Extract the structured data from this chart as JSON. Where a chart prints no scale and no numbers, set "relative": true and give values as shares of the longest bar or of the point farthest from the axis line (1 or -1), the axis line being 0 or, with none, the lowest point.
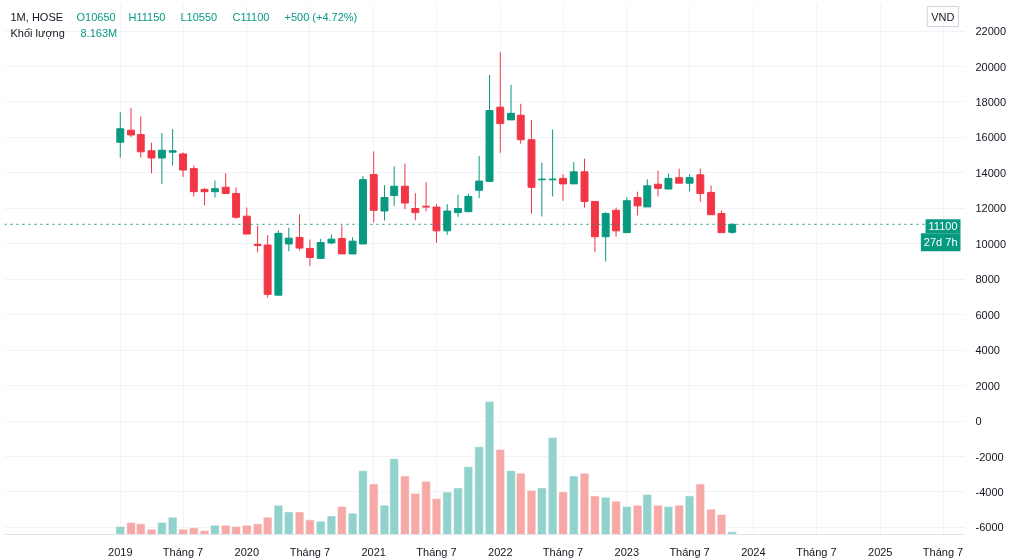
{
  "chart_data": [
    {
      "type": "candlestick",
      "title": "1M, HOSE",
      "annotations": [
        "O10650",
        "H11150",
        "L10550",
        "C11100",
        "+500 (+4.72%)",
        "Khối lượng",
        "8.163M",
        "VND",
        "27d 7h"
      ],
      "x": [
        "2019-01",
        "2019-02",
        "2019-03",
        "2019-04",
        "2019-05",
        "2019-06",
        "2019-07",
        "2019-08",
        "2019-09",
        "2019-10",
        "2019-11",
        "2019-12",
        "2020-01",
        "2020-02",
        "2020-03",
        "2020-04",
        "2020-05",
        "2020-06",
        "2020-07",
        "2020-08",
        "2020-09",
        "2020-10",
        "2020-11",
        "2020-12",
        "2021-01",
        "2021-02",
        "2021-03",
        "2021-04",
        "2021-05",
        "2021-06",
        "2021-07",
        "2021-08",
        "2021-09",
        "2021-10",
        "2021-11",
        "2021-12",
        "2022-01",
        "2022-02",
        "2022-03",
        "2022-04",
        "2022-05",
        "2022-06",
        "2022-07",
        "2022-08",
        "2022-09",
        "2022-10",
        "2022-11",
        "2022-12",
        "2023-01",
        "2023-02",
        "2023-03",
        "2023-04",
        "2023-05",
        "2023-06",
        "2023-07",
        "2023-08",
        "2023-09",
        "2023-10",
        "2023-11"
      ],
      "ohlc": [
        [
          15730,
          17420,
          14860,
          16490
        ],
        [
          16410,
          17670,
          16020,
          16140
        ],
        [
          16160,
          17190,
          14860,
          15190
        ],
        [
          15250,
          15710,
          13980,
          14840
        ],
        [
          14840,
          16250,
          13380,
          15280
        ],
        [
          15170,
          16470,
          14410,
          15250
        ],
        [
          15070,
          15150,
          13770,
          14160
        ],
        [
          14240,
          14410,
          12670,
          12940
        ],
        [
          13070,
          13150,
          12180,
          12940
        ],
        [
          12940,
          13580,
          12610,
          13110
        ],
        [
          13190,
          13980,
          12840,
          12840
        ],
        [
          12840,
          13190,
          11400,
          11500
        ],
        [
          11560,
          12040,
          10550,
          10550
        ],
        [
          9970,
          11010,
          9520,
          9910
        ],
        [
          9930,
          10490,
          6960,
          7150
        ],
        [
          7100,
          10760,
          7100,
          10590
        ],
        [
          9990,
          10900,
          9580,
          10320
        ],
        [
          10360,
          11660,
          9620,
          9760
        ],
        [
          9740,
          10240,
          8750,
          9230
        ],
        [
          9180,
          10280,
          9180,
          10070
        ],
        [
          10050,
          10530,
          9970,
          10260
        ],
        [
          10300,
          11040,
          9430,
          9430
        ],
        [
          9430,
          10360,
          9430,
          10150
        ],
        [
          9990,
          13830,
          9990,
          13620
        ],
        [
          13910,
          15210,
          11210,
          11890
        ],
        [
          11850,
          13310,
          11310,
          12610
        ],
        [
          12720,
          14370,
          12140,
          13250
        ],
        [
          13250,
          14530,
          11950,
          12300
        ],
        [
          11990,
          12860,
          11330,
          11760
        ],
        [
          12120,
          13480,
          11830,
          12070
        ],
        [
          12070,
          12240,
          10050,
          10730
        ],
        [
          10730,
          12240,
          10500,
          11850
        ],
        [
          11760,
          12780,
          11520,
          11990
        ],
        [
          11810,
          12820,
          11810,
          12670
        ],
        [
          13020,
          14960,
          12570,
          13540
        ],
        [
          13520,
          19520,
          13520,
          17520
        ],
        [
          17710,
          20810,
          15130,
          16780
        ],
        [
          16990,
          18970,
          16990,
          17360
        ],
        [
          17250,
          17900,
          15640,
          15870
        ],
        [
          15870,
          16990,
          11700,
          13190
        ],
        [
          13610,
          14570,
          11540,
          13650
        ],
        [
          13610,
          16450,
          12670,
          13650
        ],
        [
          13690,
          13930,
          12430,
          13380
        ],
        [
          13380,
          14610,
          13380,
          14060
        ],
        [
          14060,
          14800,
          12040,
          12390
        ],
        [
          12390,
          12390,
          9520,
          10400
        ],
        [
          10400,
          11790,
          9000,
          11710
        ],
        [
          11890,
          12040,
          10400,
          10730
        ],
        [
          10630,
          12630,
          10630,
          12430
        ],
        [
          12610,
          12940,
          11600,
          12140
        ],
        [
          12080,
          13640,
          12080,
          13270
        ],
        [
          13360,
          14120,
          12670,
          13130
        ],
        [
          13090,
          13960,
          13090,
          13690
        ],
        [
          13730,
          14240,
          13420,
          13420
        ],
        [
          13420,
          13930,
          12960,
          13730
        ],
        [
          13890,
          14240,
          12370,
          12840
        ],
        [
          12900,
          13290,
          11640,
          11640
        ],
        [
          11710,
          11890,
          10630,
          10630
        ],
        [
          10650,
          11150,
          10550,
          11100
        ]
      ],
      "colors": [
        "#089981",
        "#f23645",
        "#f23645",
        "#f23645",
        "#089981",
        "#089981",
        "#f23645",
        "#f23645",
        "#f23645",
        "#089981",
        "#f23645",
        "#f23645",
        "#f23645",
        "#f23645",
        "#f23645",
        "#089981",
        "#089981",
        "#f23645",
        "#f23645",
        "#089981",
        "#089981",
        "#f23645",
        "#089981",
        "#089981",
        "#f23645",
        "#089981",
        "#089981",
        "#f23645",
        "#f23645",
        "#f23645",
        "#f23645",
        "#089981",
        "#089981",
        "#089981",
        "#089981",
        "#089981",
        "#f23645",
        "#089981",
        "#f23645",
        "#f23645",
        "#089981",
        "#089981",
        "#f23645",
        "#089981",
        "#f23645",
        "#f23645",
        "#089981",
        "#f23645",
        "#089981",
        "#f23645",
        "#089981",
        "#f23645",
        "#089981",
        "#f23645",
        "#089981",
        "#f23645",
        "#f23645",
        "#f23645",
        "#089981"
      ],
      "xlim": [
        "2018-02",
        "2025-09"
      ],
      "xticks": [
        {
          "value": "2019-01",
          "label": null
        },
        {
          "value": "2019-07",
          "label": null
        },
        {
          "value": "2020-01",
          "label": null
        },
        {
          "value": "2020-07",
          "label": null
        },
        {
          "value": "2021-01",
          "label": null
        },
        {
          "value": "2021-07",
          "label": null
        },
        {
          "value": "2022-01",
          "label": null
        },
        {
          "value": "2022-07",
          "label": null
        },
        {
          "value": "2023-01",
          "label": null
        },
        {
          "value": "2023-07",
          "label": null
        },
        {
          "value": "2024-01",
          "label": null
        },
        {
          "value": "2024-07",
          "label": null
        },
        {
          "value": "2025-01",
          "label": null
        },
        {
          "value": "2025-07",
          "label": null
        }
      ],
      "ylim": [
        -6400,
        23500
      ],
      "yticks": [
        -6000,
        -4000,
        -2000,
        0,
        2000,
        4000,
        6000,
        8000,
        10000,
        12000,
        14000,
        16000,
        18000,
        20000,
        22000
      ],
      "ref_lines": [
        {
          "axis": "y",
          "value": 11100,
          "label": "11100",
          "color": "#089981",
          "line_style": "dotted"
        }
      ],
      "grid": true,
      "tick_labels": "y"
    },
    {
      "type": "bar",
      "relative": true,
      "tick_labels": "x",
      "xlim": [
        "2018-02",
        "2025-09"
      ],
      "xticks": [
        {
          "value": "2019-01",
          "label": "2019"
        },
        {
          "value": "2019-07",
          "label": "Tháng 7"
        },
        {
          "value": "2020-01",
          "label": "2020"
        },
        {
          "value": "2020-07",
          "label": "Tháng 7"
        },
        {
          "value": "2021-01",
          "label": "2021"
        },
        {
          "value": "2021-07",
          "label": "Tháng 7"
        },
        {
          "value": "2022-01",
          "label": "2022"
        },
        {
          "value": "2022-07",
          "label": "Tháng 7"
        },
        {
          "value": "2023-01",
          "label": "2023"
        },
        {
          "value": "2023-07",
          "label": "Tháng 7"
        },
        {
          "value": "2024-01",
          "label": "2024"
        },
        {
          "value": "2024-07",
          "label": "Tháng 7"
        },
        {
          "value": "2025-01",
          "label": "2025"
        },
        {
          "value": "2025-07",
          "label": "Tháng 7"
        }
      ],
      "x": [
        "2019-01",
        "2019-02",
        "2019-03",
        "2019-04",
        "2019-05",
        "2019-06",
        "2019-07",
        "2019-08",
        "2019-09",
        "2019-10",
        "2019-11",
        "2019-12",
        "2020-01",
        "2020-02",
        "2020-03",
        "2020-04",
        "2020-05",
        "2020-06",
        "2020-07",
        "2020-08",
        "2020-09",
        "2020-10",
        "2020-11",
        "2020-12",
        "2021-01",
        "2021-02",
        "2021-03",
        "2021-04",
        "2021-05",
        "2021-06",
        "2021-07",
        "2021-08",
        "2021-09",
        "2021-10",
        "2021-11",
        "2021-12",
        "2022-01",
        "2022-02",
        "2022-03",
        "2022-04",
        "2022-05",
        "2022-06",
        "2022-07",
        "2022-08",
        "2022-09",
        "2022-10",
        "2022-11",
        "2022-12",
        "2023-01",
        "2023-02",
        "2023-03",
        "2023-04",
        "2023-05",
        "2023-06",
        "2023-07",
        "2023-08",
        "2023-09",
        "2023-10",
        "2023-11"
      ],
      "values": [
        0.06,
        0.09,
        0.08,
        0.04,
        0.09,
        0.13,
        0.04,
        0.05,
        0.03,
        0.07,
        0.07,
        0.06,
        0.07,
        0.08,
        0.13,
        0.22,
        0.17,
        0.17,
        0.11,
        0.1,
        0.14,
        0.21,
        0.16,
        0.48,
        0.38,
        0.22,
        0.57,
        0.44,
        0.31,
        0.4,
        0.27,
        0.32,
        0.35,
        0.51,
        0.66,
        1,
        0.64,
        0.48,
        0.46,
        0.33,
        0.35,
        0.73,
        0.32,
        0.44,
        0.46,
        0.29,
        0.28,
        0.25,
        0.21,
        0.22,
        0.3,
        0.22,
        0.21,
        0.22,
        0.29,
        0.38,
        0.19,
        0.15,
        0.02
      ],
      "colors": [
        "#92d2cc",
        "#f7a9a7",
        "#f7a9a7",
        "#f7a9a7",
        "#92d2cc",
        "#92d2cc",
        "#f7a9a7",
        "#f7a9a7",
        "#f7a9a7",
        "#92d2cc",
        "#f7a9a7",
        "#f7a9a7",
        "#f7a9a7",
        "#f7a9a7",
        "#f7a9a7",
        "#92d2cc",
        "#92d2cc",
        "#f7a9a7",
        "#f7a9a7",
        "#92d2cc",
        "#92d2cc",
        "#f7a9a7",
        "#92d2cc",
        "#92d2cc",
        "#f7a9a7",
        "#92d2cc",
        "#92d2cc",
        "#f7a9a7",
        "#f7a9a7",
        "#f7a9a7",
        "#f7a9a7",
        "#92d2cc",
        "#92d2cc",
        "#92d2cc",
        "#92d2cc",
        "#92d2cc",
        "#f7a9a7",
        "#92d2cc",
        "#f7a9a7",
        "#f7a9a7",
        "#92d2cc",
        "#92d2cc",
        "#f7a9a7",
        "#92d2cc",
        "#f7a9a7",
        "#f7a9a7",
        "#92d2cc",
        "#f7a9a7",
        "#92d2cc",
        "#f7a9a7",
        "#92d2cc",
        "#f7a9a7",
        "#92d2cc",
        "#f7a9a7",
        "#92d2cc",
        "#f7a9a7",
        "#f7a9a7",
        "#f7a9a7",
        "#92d2cc"
      ]
    }
  ]
}
